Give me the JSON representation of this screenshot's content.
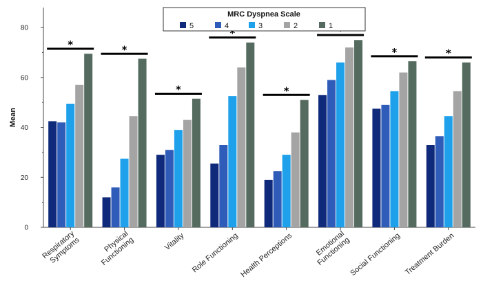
{
  "chart_data": {
    "type": "bar",
    "ylabel": "Mean",
    "ylim": [
      0,
      88
    ],
    "yticks": [
      0,
      20,
      40,
      60,
      80
    ],
    "legend": {
      "title": "MRC Dyspnea Scale",
      "position": "top-center"
    },
    "categories": [
      [
        "Respiratory",
        "Symptoms"
      ],
      [
        "Physical",
        "Functioning"
      ],
      [
        "Vitality"
      ],
      [
        "Role Functioning"
      ],
      [
        "Health Perceptions"
      ],
      [
        "Emotional",
        "Functioning"
      ],
      [
        "Social Functioning"
      ],
      [
        "Treatment Burden"
      ]
    ],
    "series": [
      {
        "name": "5",
        "color": "#0f2a7a",
        "values": [
          42.5,
          12.0,
          29.0,
          25.5,
          19.0,
          53.0,
          47.5,
          33.0
        ]
      },
      {
        "name": "4",
        "color": "#2e5cb8",
        "values": [
          42.0,
          16.0,
          31.0,
          33.0,
          22.5,
          59.0,
          49.0,
          36.5
        ]
      },
      {
        "name": "3",
        "color": "#1ea0ea",
        "values": [
          49.5,
          27.5,
          39.0,
          52.5,
          29.0,
          66.0,
          54.5,
          44.5
        ]
      },
      {
        "name": "2",
        "color": "#a4a4a4",
        "values": [
          57.0,
          44.5,
          43.0,
          64.0,
          38.0,
          72.0,
          62.0,
          54.5
        ]
      },
      {
        "name": "1",
        "color": "#556b5f",
        "values": [
          69.5,
          67.5,
          51.5,
          74.0,
          51.0,
          75.0,
          66.5,
          66.0
        ]
      }
    ],
    "significance": {
      "symbol": "*",
      "bar_level": [
        71.5,
        69.5,
        53.5,
        76.0,
        53.0,
        77.0,
        68.5,
        68.0
      ]
    },
    "grid": false
  }
}
